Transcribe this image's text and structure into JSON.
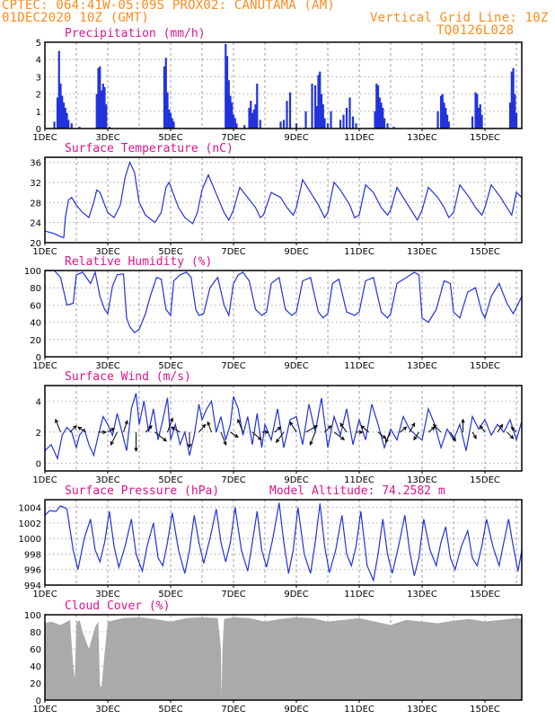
{
  "header": {
    "line1_left": "CPTEC:   064:41W-05:09S   PROX02: CANUTAMA (AM)",
    "line2_left": "01DEC2020 10Z (GMT)",
    "line2_right": "Vertical Grid Line: 10Z",
    "line3_right": "TQ0126L028"
  },
  "colors": {
    "header": "#ff8a1c",
    "title": "#e0148a",
    "series": "#2233dd",
    "cloud": "#aaaaaa"
  },
  "x_axis": {
    "ticks": [
      "1DEC",
      "3DEC",
      "5DEC",
      "7DEC",
      "9DEC",
      "11DEC",
      "13DEC",
      "15DEC"
    ],
    "range_days": [
      1,
      16.17
    ]
  },
  "chart_data": [
    {
      "id": "precip",
      "type": "bar",
      "title": "Precipitation (mm/h)",
      "ylim": [
        0,
        5
      ],
      "yticks": [
        "0",
        "1",
        "2",
        "3",
        "4",
        "5"
      ],
      "x": [
        1.3,
        1.4,
        1.45,
        1.5,
        1.55,
        1.6,
        1.65,
        1.7,
        1.75,
        1.85,
        2.1,
        2.65,
        2.7,
        2.75,
        2.8,
        2.85,
        2.9,
        2.95,
        3.05,
        4.8,
        4.85,
        4.9,
        4.95,
        5.0,
        5.05,
        5.1,
        6.75,
        6.8,
        6.85,
        6.9,
        6.95,
        7.0,
        7.05,
        7.1,
        7.35,
        7.5,
        7.55,
        7.6,
        7.65,
        7.7,
        7.75,
        7.85,
        8.5,
        8.6,
        8.7,
        8.8,
        9.0,
        9.3,
        9.5,
        9.6,
        9.65,
        9.7,
        9.75,
        9.8,
        9.85,
        9.9,
        10.0,
        10.1,
        10.4,
        10.5,
        10.6,
        10.7,
        10.8,
        10.9,
        11.5,
        11.55,
        11.6,
        11.65,
        11.7,
        11.75,
        11.8,
        11.9,
        12.1,
        13.5,
        13.6,
        13.65,
        13.7,
        13.75,
        13.8,
        13.85,
        14.6,
        14.7,
        14.75,
        14.8,
        14.85,
        14.9,
        15.8,
        15.85,
        15.9,
        15.95,
        16.0
      ],
      "values": [
        0.4,
        1.8,
        4.5,
        2.6,
        1.9,
        1.5,
        1.2,
        0.9,
        0.5,
        0.3,
        0.1,
        2.0,
        3.5,
        3.6,
        2.2,
        2.6,
        2.4,
        1.4,
        0.1,
        3.6,
        4.1,
        2.1,
        1.1,
        0.9,
        0.6,
        0.4,
        4.9,
        4.2,
        2.8,
        1.9,
        1.5,
        0.8,
        0.6,
        0.3,
        0.2,
        1.2,
        1.6,
        0.9,
        1.1,
        1.4,
        2.6,
        0.5,
        0.4,
        0.5,
        1.6,
        2.1,
        0.3,
        1.0,
        2.6,
        2.5,
        1.3,
        3.1,
        3.3,
        2.0,
        1.4,
        0.6,
        0.3,
        1.0,
        0.5,
        0.8,
        1.2,
        1.8,
        0.7,
        0.3,
        1.0,
        2.6,
        2.5,
        1.8,
        1.5,
        1.2,
        0.6,
        0.3,
        0.1,
        1.0,
        1.9,
        2.0,
        1.5,
        1.2,
        0.8,
        0.4,
        0.7,
        2.1,
        2.0,
        1.2,
        1.4,
        0.8,
        1.5,
        3.3,
        3.5,
        2.0,
        0.9
      ]
    },
    {
      "id": "temp",
      "type": "line",
      "title": "Surface Temperature (nC)",
      "ylim": [
        20,
        37
      ],
      "yticks": [
        "20",
        "24",
        "28",
        "32",
        "36"
      ],
      "x": [
        1.0,
        1.3,
        1.5,
        1.6,
        1.65,
        1.75,
        1.85,
        2.0,
        2.2,
        2.4,
        2.55,
        2.65,
        2.75,
        3.0,
        3.2,
        3.4,
        3.55,
        3.7,
        3.85,
        4.0,
        4.2,
        4.5,
        4.7,
        4.85,
        4.95,
        5.1,
        5.25,
        5.45,
        5.7,
        5.85,
        6.0,
        6.2,
        6.5,
        6.7,
        6.85,
        7.0,
        7.2,
        7.45,
        7.7,
        7.85,
        7.95,
        8.2,
        8.5,
        8.7,
        8.9,
        9.0,
        9.2,
        9.45,
        9.7,
        9.9,
        10.0,
        10.2,
        10.4,
        10.7,
        10.85,
        11.0,
        11.2,
        11.45,
        11.7,
        11.9,
        12.0,
        12.2,
        12.5,
        12.7,
        12.85,
        13.0,
        13.2,
        13.5,
        13.7,
        13.85,
        14.0,
        14.2,
        14.5,
        14.7,
        14.9,
        15.0,
        15.2,
        15.5,
        15.7,
        15.85,
        16.0,
        16.17
      ],
      "values": [
        22.3,
        21.8,
        21.2,
        21.0,
        25.0,
        28.5,
        29.0,
        27.5,
        26.0,
        25.0,
        28.0,
        30.5,
        30.0,
        26.0,
        25.0,
        27.5,
        33.0,
        36.0,
        34.0,
        28.0,
        25.5,
        24.0,
        26.0,
        31.0,
        32.0,
        29.5,
        27.0,
        25.0,
        23.8,
        26.0,
        30.5,
        33.5,
        29.0,
        26.0,
        24.5,
        26.5,
        31.0,
        29.0,
        27.0,
        25.0,
        25.5,
        30.0,
        29.0,
        27.0,
        25.5,
        27.0,
        32.5,
        30.0,
        27.5,
        25.0,
        26.0,
        32.0,
        30.5,
        27.5,
        25.0,
        25.5,
        31.5,
        30.0,
        27.0,
        25.5,
        26.5,
        31.0,
        28.0,
        26.0,
        24.5,
        26.5,
        31.0,
        29.0,
        27.0,
        25.0,
        26.0,
        31.5,
        29.0,
        27.0,
        25.5,
        27.0,
        31.5,
        29.0,
        27.0,
        25.5,
        30.0,
        29.0
      ]
    },
    {
      "id": "rh",
      "type": "line",
      "title": "Relative Humidity (%)",
      "ylim": [
        0,
        100
      ],
      "yticks": [
        "0",
        "20",
        "40",
        "60",
        "80",
        "100"
      ],
      "x": [
        1.0,
        1.3,
        1.5,
        1.7,
        1.9,
        2.0,
        2.2,
        2.45,
        2.6,
        2.75,
        2.9,
        3.0,
        3.15,
        3.3,
        3.5,
        3.6,
        3.7,
        3.85,
        4.0,
        4.2,
        4.35,
        4.55,
        4.7,
        4.85,
        5.0,
        5.1,
        5.3,
        5.5,
        5.65,
        5.8,
        5.9,
        6.05,
        6.25,
        6.5,
        6.7,
        6.85,
        7.0,
        7.15,
        7.3,
        7.5,
        7.7,
        7.9,
        8.05,
        8.2,
        8.45,
        8.65,
        8.85,
        9.0,
        9.2,
        9.45,
        9.7,
        9.85,
        10.0,
        10.15,
        10.35,
        10.6,
        10.85,
        11.0,
        11.2,
        11.45,
        11.7,
        11.9,
        12.0,
        12.2,
        12.5,
        12.75,
        12.9,
        13.0,
        13.2,
        13.45,
        13.7,
        13.9,
        14.0,
        14.2,
        14.45,
        14.7,
        14.9,
        15.0,
        15.2,
        15.45,
        15.7,
        15.9,
        16.17
      ],
      "values": [
        100,
        100,
        92,
        60,
        62,
        95,
        98,
        85,
        98,
        70,
        55,
        50,
        82,
        95,
        96,
        45,
        35,
        28,
        32,
        50,
        70,
        92,
        90,
        55,
        48,
        88,
        95,
        98,
        92,
        55,
        48,
        50,
        80,
        92,
        60,
        48,
        85,
        95,
        98,
        88,
        55,
        48,
        52,
        85,
        92,
        55,
        48,
        52,
        88,
        92,
        52,
        45,
        50,
        85,
        90,
        52,
        48,
        52,
        88,
        92,
        52,
        45,
        50,
        85,
        92,
        98,
        95,
        45,
        40,
        55,
        88,
        85,
        52,
        45,
        75,
        80,
        52,
        45,
        70,
        85,
        62,
        50,
        70
      ]
    },
    {
      "id": "wind",
      "type": "line",
      "title": "Surface Wind (m/s)",
      "ylim": [
        -0.5,
        5
      ],
      "yticks": [
        "0",
        "2",
        "4"
      ],
      "x": [
        1.0,
        1.2,
        1.4,
        1.55,
        1.7,
        1.85,
        2.0,
        2.1,
        2.25,
        2.4,
        2.55,
        2.7,
        2.85,
        3.0,
        3.15,
        3.3,
        3.45,
        3.6,
        3.75,
        3.9,
        4.0,
        4.15,
        4.3,
        4.45,
        4.6,
        4.75,
        4.9,
        5.0,
        5.15,
        5.3,
        5.45,
        5.6,
        5.75,
        5.9,
        6.0,
        6.15,
        6.3,
        6.45,
        6.6,
        6.75,
        6.9,
        7.0,
        7.15,
        7.3,
        7.45,
        7.6,
        7.75,
        7.9,
        8.0,
        8.2,
        8.4,
        8.6,
        8.8,
        9.0,
        9.2,
        9.4,
        9.6,
        9.8,
        10.0,
        10.2,
        10.4,
        10.6,
        10.8,
        11.0,
        11.2,
        11.4,
        11.6,
        11.8,
        12.0,
        12.2,
        12.4,
        12.6,
        12.8,
        13.0,
        13.2,
        13.4,
        13.6,
        13.8,
        14.0,
        14.2,
        14.4,
        14.6,
        14.8,
        15.0,
        15.2,
        15.4,
        15.6,
        15.8,
        16.0,
        16.17
      ],
      "values": [
        0.8,
        1.2,
        0.3,
        1.8,
        2.3,
        2.0,
        1.0,
        1.8,
        2.2,
        1.2,
        0.5,
        1.8,
        3.0,
        2.5,
        1.8,
        3.2,
        2.0,
        0.8,
        3.5,
        4.5,
        2.5,
        4.0,
        2.0,
        3.5,
        1.5,
        2.8,
        4.2,
        1.5,
        2.5,
        1.2,
        2.0,
        0.5,
        1.8,
        3.8,
        2.8,
        3.5,
        4.0,
        2.0,
        3.0,
        1.5,
        2.5,
        4.3,
        3.5,
        1.8,
        3.0,
        1.2,
        3.2,
        1.0,
        2.5,
        1.5,
        3.5,
        1.0,
        2.8,
        3.0,
        1.2,
        3.8,
        2.0,
        4.2,
        1.0,
        3.0,
        1.8,
        3.5,
        1.2,
        2.8,
        1.5,
        3.8,
        2.5,
        1.0,
        2.2,
        1.5,
        3.0,
        2.2,
        1.8,
        1.5,
        3.5,
        2.5,
        1.0,
        2.2,
        1.5,
        2.5,
        0.8,
        3.0,
        2.2,
        2.8,
        1.8,
        2.5,
        2.0,
        2.8,
        1.5,
        2.7
      ],
      "arrows": {
        "x": [
          1.5,
          1.8,
          2.3,
          2.7,
          3.0,
          3.3,
          3.5,
          3.9,
          4.2,
          4.5,
          4.9,
          5.3,
          5.6,
          5.9,
          6.3,
          6.6,
          6.9,
          7.3,
          7.6,
          7.9,
          8.3,
          8.6,
          9.0,
          9.3,
          9.6,
          9.9,
          10.2,
          10.6,
          10.9,
          11.3,
          11.6,
          12.0,
          12.3,
          12.6,
          12.9,
          13.2,
          13.6,
          13.9,
          14.3,
          14.6,
          15.0,
          15.4,
          15.7,
          16.0
        ],
        "dx": [
          -0.4,
          0.5,
          -0.6,
          0.6,
          0.5,
          -0.5,
          0.3,
          0.0,
          0.5,
          0.9,
          0.4,
          -0.7,
          0.0,
          0.5,
          -0.3,
          0.4,
          0.6,
          -0.4,
          0.7,
          0.5,
          0.5,
          -0.6,
          -0.5,
          0.9,
          -0.4,
          0.5,
          0.8,
          -0.5,
          0.5,
          -0.6,
          0.6,
          -0.4,
          0.5,
          0.4,
          -0.4,
          0.5,
          -0.6,
          0.4,
          0.0,
          0.3,
          -0.4,
          0.4,
          0.5,
          -0.4
        ],
        "dy": [
          1.0,
          0.5,
          0.4,
          0.0,
          0.3,
          -1.0,
          0.9,
          -1.5,
          0.5,
          -0.7,
          1.1,
          0.4,
          -1.2,
          0.6,
          0.8,
          -1.0,
          -0.4,
          1.0,
          -0.6,
          0.0,
          0.4,
          -0.8,
          0.8,
          0.5,
          -1.0,
          0.5,
          -0.6,
          0.7,
          0.0,
          0.5,
          -0.5,
          -0.8,
          0.4,
          0.7,
          -0.6,
          0.4,
          0.6,
          -0.7,
          1.0,
          -0.5,
          0.5,
          0.6,
          -0.5,
          0.4
        ]
      }
    },
    {
      "id": "pres",
      "type": "line",
      "title": "Surface Pressure (hPa)",
      "annotation": "Model Altitude: 74.2582 m",
      "ylim": [
        994,
        1005
      ],
      "yticks": [
        "994",
        "996",
        "998",
        "1000",
        "1002",
        "1004"
      ],
      "x": [
        1.0,
        1.15,
        1.35,
        1.5,
        1.7,
        1.9,
        2.05,
        2.25,
        2.45,
        2.6,
        2.75,
        2.9,
        3.05,
        3.2,
        3.35,
        3.55,
        3.75,
        3.9,
        4.1,
        4.25,
        4.45,
        4.6,
        4.75,
        4.9,
        5.05,
        5.25,
        5.45,
        5.6,
        5.75,
        5.9,
        6.05,
        6.25,
        6.45,
        6.6,
        6.75,
        6.9,
        7.05,
        7.25,
        7.45,
        7.6,
        7.75,
        7.9,
        8.05,
        8.25,
        8.45,
        8.6,
        8.75,
        8.9,
        9.05,
        9.25,
        9.45,
        9.6,
        9.75,
        9.9,
        10.05,
        10.25,
        10.45,
        10.6,
        10.75,
        10.9,
        11.05,
        11.25,
        11.45,
        11.6,
        11.75,
        11.9,
        12.05,
        12.25,
        12.45,
        12.6,
        12.75,
        12.9,
        13.05,
        13.25,
        13.45,
        13.6,
        13.75,
        13.9,
        14.05,
        14.25,
        14.45,
        14.6,
        14.75,
        14.9,
        15.05,
        15.25,
        15.45,
        15.6,
        15.75,
        15.9,
        16.05,
        16.17
      ],
      "values": [
        1003.0,
        1003.6,
        1003.5,
        1004.2,
        1003.8,
        998.5,
        996.0,
        1000.0,
        1002.5,
        998.5,
        997.0,
        999.5,
        1003.5,
        999.0,
        996.3,
        999.0,
        1002.5,
        998.0,
        995.8,
        999.0,
        1002.0,
        997.5,
        996.5,
        999.5,
        1003.3,
        998.5,
        995.5,
        998.5,
        1003.0,
        999.5,
        996.8,
        1000.0,
        1003.8,
        999.5,
        997.0,
        999.5,
        1004.0,
        998.5,
        995.8,
        999.5,
        1003.5,
        998.5,
        996.3,
        1000.0,
        1004.6,
        999.5,
        995.5,
        998.5,
        1004.0,
        998.0,
        995.5,
        999.5,
        1004.5,
        999.0,
        995.6,
        998.5,
        1003.0,
        998.0,
        996.5,
        999.0,
        1003.5,
        996.5,
        994.6,
        998.0,
        1002.5,
        998.0,
        995.5,
        999.0,
        1003.0,
        998.5,
        995.2,
        997.5,
        1002.5,
        998.5,
        996.5,
        999.5,
        1001.5,
        997.5,
        996.0,
        999.0,
        1001.0,
        997.5,
        996.5,
        999.0,
        1002.5,
        999.0,
        996.5,
        999.5,
        1002.5,
        999.0,
        995.8,
        998.5
      ]
    },
    {
      "id": "cloud",
      "type": "area",
      "title": "Cloud Cover (%)",
      "ylim": [
        0,
        100
      ],
      "yticks": [
        "0",
        "20",
        "40",
        "60",
        "80",
        "100"
      ],
      "x": [
        1.0,
        1.2,
        1.5,
        1.8,
        1.9,
        1.95,
        2.0,
        2.1,
        2.2,
        2.4,
        2.6,
        2.7,
        2.75,
        2.8,
        2.9,
        3.0,
        3.5,
        4.0,
        4.5,
        5.0,
        5.5,
        6.0,
        6.5,
        6.6,
        6.62,
        6.65,
        6.7,
        7.0,
        7.5,
        8.0,
        8.5,
        9.0,
        9.5,
        10.0,
        10.5,
        11.0,
        11.5,
        12.0,
        12.5,
        13.0,
        13.5,
        14.0,
        14.5,
        15.0,
        15.5,
        16.0,
        16.17
      ],
      "values": [
        90,
        92,
        88,
        94,
        40,
        25,
        90,
        94,
        80,
        60,
        86,
        92,
        18,
        15,
        55,
        92,
        96,
        97,
        95,
        92,
        96,
        97,
        96,
        60,
        5,
        60,
        95,
        97,
        96,
        92,
        95,
        97,
        96,
        92,
        94,
        96,
        92,
        88,
        94,
        92,
        90,
        93,
        95,
        92,
        94,
        96,
        95
      ]
    }
  ]
}
